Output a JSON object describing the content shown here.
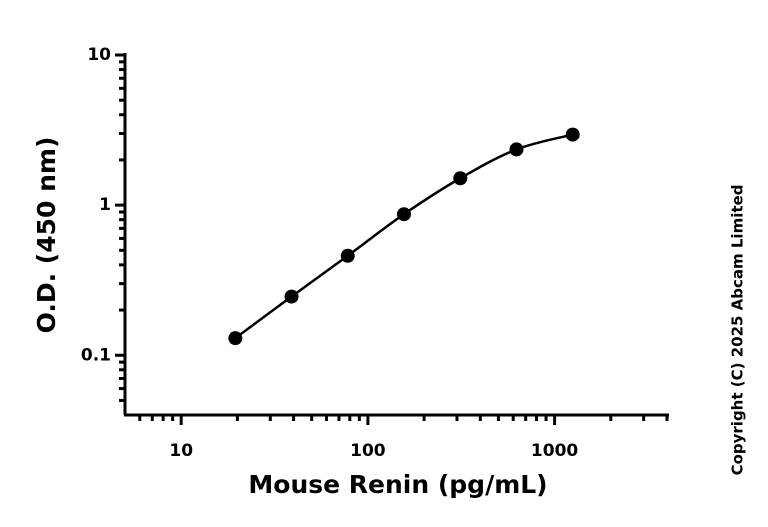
{
  "chart_data": {
    "type": "scatter",
    "x_label": "Mouse Renin (pg/mL)",
    "y_label": "O.D. (450 nm)",
    "note": "Copyright (C) 2025 Abcam Limited",
    "x": [
      19.5,
      39,
      78,
      156,
      312.5,
      625,
      1250
    ],
    "series": [
      {
        "color": "#000000",
        "values": [
          0.13,
          0.246,
          0.46,
          0.87,
          1.51,
          2.35,
          2.95
        ]
      }
    ],
    "xscale": "log",
    "yscale": "log",
    "xlim": [
      5,
      4000
    ],
    "ylim": [
      0.04,
      10
    ],
    "xticks": [
      10,
      100,
      1000
    ],
    "yticks": [
      0.1,
      1,
      10
    ],
    "xminorticks": [
      6,
      7,
      8,
      9,
      20,
      30,
      40,
      50,
      60,
      70,
      80,
      90,
      200,
      300,
      400,
      500,
      600,
      700,
      800,
      900,
      2000,
      3000,
      4000
    ],
    "yminorticks": [
      0.05,
      0.06,
      0.07,
      0.08,
      0.09,
      0.2,
      0.3,
      0.4,
      0.5,
      0.6,
      0.7,
      0.8,
      0.9,
      2,
      3,
      4,
      5,
      6,
      7,
      8,
      9
    ],
    "fit_curve": true
  }
}
